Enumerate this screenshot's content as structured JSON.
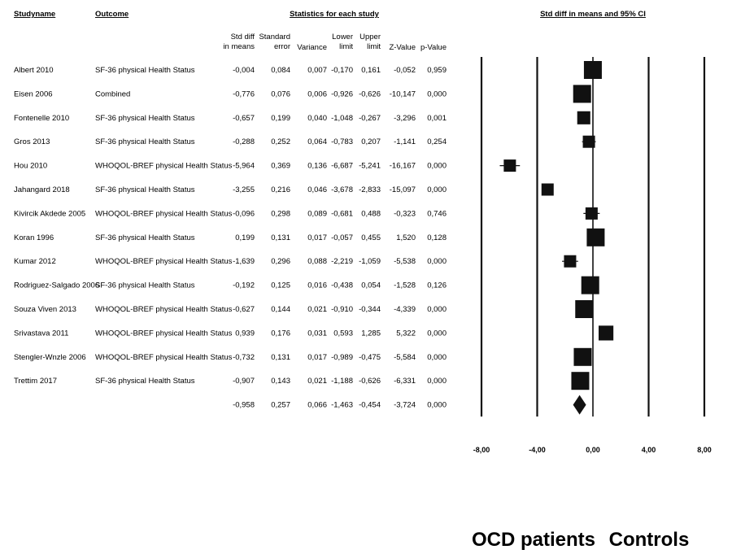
{
  "headers": {
    "study_name": "Studyname",
    "outcome": "Outcome",
    "stats_group": "Statistics for each study",
    "ci_title": "Std diff in means and 95% CI",
    "columns": [
      [
        "Std diff",
        "in means"
      ],
      [
        "Standard",
        "error"
      ],
      [
        "Variance"
      ],
      [
        "Lower",
        "limit"
      ],
      [
        "Upper",
        "limit"
      ],
      [
        "Z-Value"
      ],
      [
        "p-Value"
      ]
    ]
  },
  "group_labels": {
    "left": "OCD patients",
    "right": "Controls"
  },
  "chart_data": {
    "type": "forest",
    "xlim": [
      -8,
      8
    ],
    "xticks": [
      -8,
      -4,
      0,
      4,
      8
    ],
    "tick_labels": [
      "-8,00",
      "-4,00",
      "0,00",
      "4,00",
      "8,00"
    ],
    "studies": [
      {
        "name": "Albert 2010",
        "outcome": "SF-36 physical Health Status",
        "smd": -0.004,
        "lower": -0.17,
        "upper": 0.161,
        "cells": [
          "-0,004",
          "0,084",
          "0,007",
          "-0,170",
          "0,161",
          "-0,052",
          "0,959"
        ]
      },
      {
        "name": "Eisen 2006",
        "outcome": "Combined",
        "smd": -0.776,
        "lower": -0.926,
        "upper": -0.626,
        "cells": [
          "-0,776",
          "0,076",
          "0,006",
          "-0,926",
          "-0,626",
          "-10,147",
          "0,000"
        ]
      },
      {
        "name": "Fontenelle 2010",
        "outcome": "SF-36 physical Health Status",
        "smd": -0.657,
        "lower": -1.048,
        "upper": -0.267,
        "cells": [
          "-0,657",
          "0,199",
          "0,040",
          "-1,048",
          "-0,267",
          "-3,296",
          "0,001"
        ]
      },
      {
        "name": "Gros 2013",
        "outcome": "SF-36 physical Health Status",
        "smd": -0.288,
        "lower": -0.783,
        "upper": 0.207,
        "cells": [
          "-0,288",
          "0,252",
          "0,064",
          "-0,783",
          "0,207",
          "-1,141",
          "0,254"
        ]
      },
      {
        "name": "Hou 2010",
        "outcome": "WHOQOL-BREF physical Health Status",
        "smd": -5.964,
        "lower": -6.687,
        "upper": -5.241,
        "cells": [
          "-5,964",
          "0,369",
          "0,136",
          "-6,687",
          "-5,241",
          "-16,167",
          "0,000"
        ]
      },
      {
        "name": "Jahangard 2018",
        "outcome": "SF-36 physical Health Status",
        "smd": -3.255,
        "lower": -3.678,
        "upper": -2.833,
        "cells": [
          "-3,255",
          "0,216",
          "0,046",
          "-3,678",
          "-2,833",
          "-15,097",
          "0,000"
        ]
      },
      {
        "name": "Kivircik Akdede 2005",
        "outcome": "WHOQOL-BREF physical Health Status",
        "smd": -0.096,
        "lower": -0.681,
        "upper": 0.488,
        "cells": [
          "-0,096",
          "0,298",
          "0,089",
          "-0,681",
          "0,488",
          "-0,323",
          "0,746"
        ]
      },
      {
        "name": "Koran 1996",
        "outcome": "SF-36 physical Health Status",
        "smd": 0.199,
        "lower": -0.057,
        "upper": 0.455,
        "cells": [
          "0,199",
          "0,131",
          "0,017",
          "-0,057",
          "0,455",
          "1,520",
          "0,128"
        ]
      },
      {
        "name": "Kumar 2012",
        "outcome": "WHOQOL-BREF physical Health Status",
        "smd": -1.639,
        "lower": -2.219,
        "upper": -1.059,
        "cells": [
          "-1,639",
          "0,296",
          "0,088",
          "-2,219",
          "-1,059",
          "-5,538",
          "0,000"
        ]
      },
      {
        "name": "Rodriguez-Salgado 2006",
        "outcome": "SF-36 physical Health Status",
        "smd": -0.192,
        "lower": -0.438,
        "upper": 0.054,
        "cells": [
          "-0,192",
          "0,125",
          "0,016",
          "-0,438",
          "0,054",
          "-1,528",
          "0,126"
        ]
      },
      {
        "name": "Souza Viven 2013",
        "outcome": "WHOQOL-BREF physical Health Status",
        "smd": -0.627,
        "lower": -0.91,
        "upper": -0.344,
        "cells": [
          "-0,627",
          "0,144",
          "0,021",
          "-0,910",
          "-0,344",
          "-4,339",
          "0,000"
        ]
      },
      {
        "name": "Srivastava 2011",
        "outcome": "WHOQOL-BREF physical Health Status",
        "smd": 0.939,
        "lower": 0.593,
        "upper": 1.285,
        "cells": [
          "0,939",
          "0,176",
          "0,031",
          "0,593",
          "1,285",
          "5,322",
          "0,000"
        ]
      },
      {
        "name": "Stengler-Wnzle 2006",
        "outcome": "WHOQOL-BREF physical Health Status",
        "smd": -0.732,
        "lower": -0.989,
        "upper": -0.475,
        "cells": [
          "-0,732",
          "0,131",
          "0,017",
          "-0,989",
          "-0,475",
          "-5,584",
          "0,000"
        ]
      },
      {
        "name": "Trettim 2017",
        "outcome": "SF-36 physical Health Status",
        "smd": -0.907,
        "lower": -1.188,
        "upper": -0.626,
        "cells": [
          "-0,907",
          "0,143",
          "0,021",
          "-1,188",
          "-0,626",
          "-6,331",
          "0,000"
        ]
      }
    ],
    "summary": {
      "smd": -0.958,
      "lower": -1.463,
      "upper": -0.454,
      "cells": [
        "-0,958",
        "0,257",
        "0,066",
        "-1,463",
        "-0,454",
        "-3,724",
        "0,000"
      ]
    }
  }
}
